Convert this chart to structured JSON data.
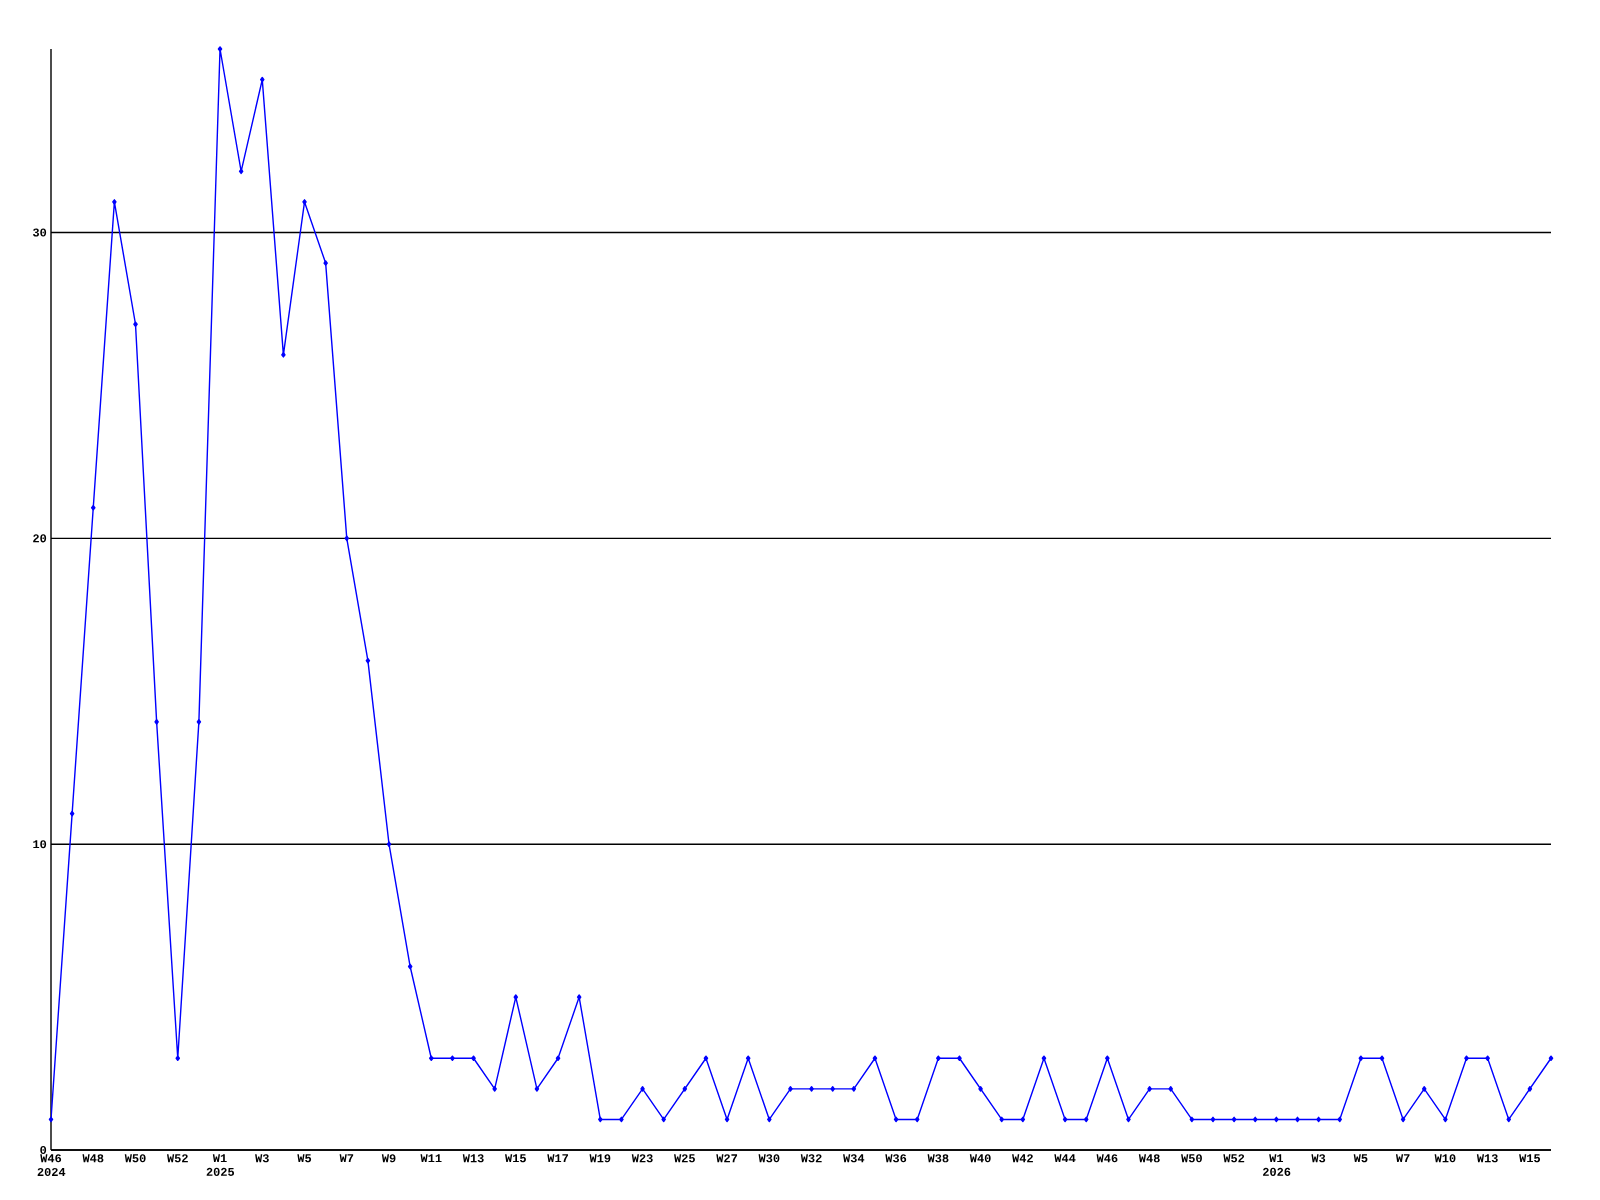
{
  "chart_data": {
    "type": "line",
    "categories": [
      "W46 2024",
      null,
      "W48",
      null,
      "W50",
      null,
      "W52",
      null,
      "W1 2025",
      null,
      "W3",
      null,
      "W5",
      null,
      "W7",
      null,
      "W9",
      null,
      "W11",
      null,
      "W13",
      null,
      "W15",
      null,
      "W17",
      null,
      "W19",
      null,
      "W23",
      null,
      "W25",
      null,
      "W27",
      null,
      "W30",
      null,
      "W32",
      null,
      "W34",
      null,
      "W36",
      null,
      "W38",
      null,
      "W40",
      null,
      "W42",
      null,
      "W44",
      null,
      "W46",
      null,
      "W48",
      null,
      "W50",
      null,
      "W52",
      null,
      "W1 2026",
      null,
      "W3",
      null,
      "W5",
      null,
      "W7",
      null,
      "W10",
      null,
      "W13",
      null,
      "W15",
      null
    ],
    "series": [
      {
        "color": "#0000ff",
        "values": [
          1,
          11,
          21,
          31,
          27,
          14,
          3,
          14,
          36,
          32,
          35,
          26,
          31,
          29,
          20,
          16,
          10,
          6,
          3,
          3,
          3,
          2,
          5,
          2,
          3,
          5,
          1,
          1,
          2,
          1,
          2,
          3,
          1,
          3,
          1,
          2,
          2,
          2,
          2,
          3,
          1,
          1,
          3,
          3,
          2,
          1,
          1,
          3,
          1,
          1,
          3,
          1,
          2,
          2,
          1,
          1,
          1,
          1,
          1,
          1,
          1,
          1,
          3,
          3,
          1,
          2,
          1,
          3,
          3,
          1,
          2,
          3
        ]
      }
    ],
    "ylim": [
      0,
      36
    ],
    "yticks": [
      0,
      10,
      20,
      30
    ],
    "grid": "y",
    "marker": "diamond",
    "line_style": "solid"
  }
}
